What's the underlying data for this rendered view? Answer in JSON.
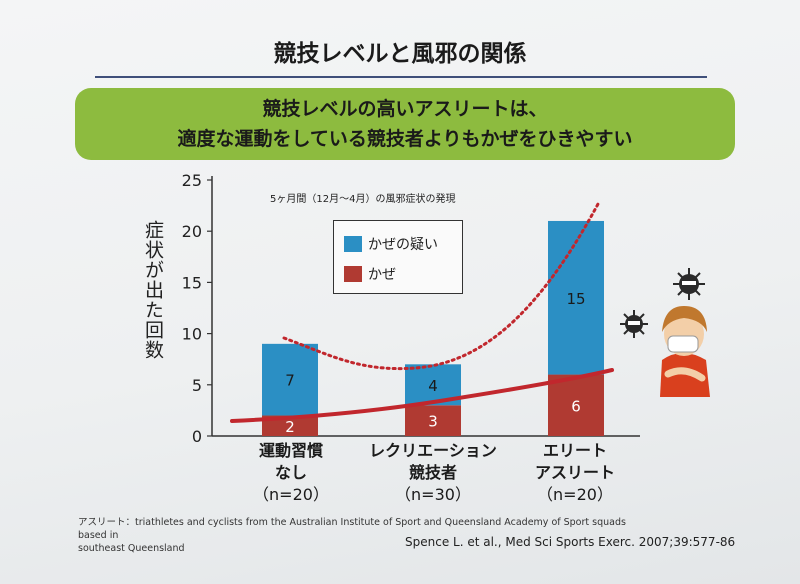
{
  "page": {
    "title": "競技レベルと風邪の関係",
    "banner_line1": "競技レベルの高いアスリートは、",
    "banner_line2": "適度な運動をしている競技者よりもかぜをひきやすい",
    "footnote_line1": "アスリート：triathletes and cyclists from the Australian Institute of Sport and Queensland Academy of Sport squads based in",
    "footnote_line2": "southeast Queensland",
    "citation": "Spence L. et al., Med Sci Sports Exerc. 2007;39:577-86"
  },
  "chart_data": {
    "type": "bar",
    "stacked": true,
    "subtitle": "5ヶ月間（12月〜4月）の風邪症状の発現",
    "ylabel": "症状が出た回数",
    "ylim": [
      0,
      25
    ],
    "yticks": [
      0,
      5,
      10,
      15,
      20,
      25
    ],
    "categories": [
      {
        "line1": "運動習慣",
        "line2": "なし",
        "n": "（n=20）"
      },
      {
        "line1": "レクリエーション",
        "line2": "競技者",
        "n": "（n=30）"
      },
      {
        "line1": "エリート",
        "line2": "アスリート",
        "n": "（n=20）"
      }
    ],
    "series": [
      {
        "name": "かぜ",
        "color": "#b03a32",
        "values": [
          2,
          3,
          6
        ],
        "labels": [
          "2",
          "3",
          "6"
        ]
      },
      {
        "name": "かぜの疑い",
        "color": "#2b8fc4",
        "values": [
          7,
          4,
          15
        ],
        "labels": [
          "7",
          "4",
          "15"
        ]
      }
    ],
    "trend_dotted": {
      "color": "#c1272d",
      "style": "dotted"
    },
    "trend_solid": {
      "color": "#c1272d",
      "style": "solid"
    },
    "legend_placement": "top-left inside plot",
    "grid": false
  }
}
